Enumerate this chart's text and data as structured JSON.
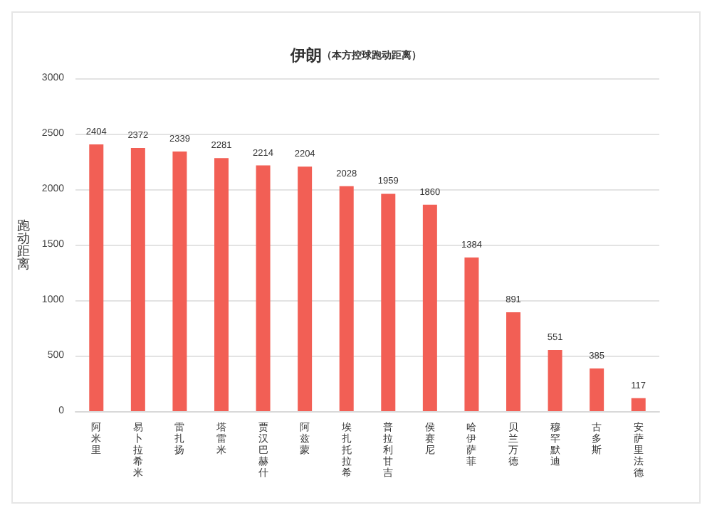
{
  "chart_data": {
    "type": "bar",
    "title": "伊朗",
    "subtitle": "（本方控球跑动距离）",
    "ylabel": "跑动距离",
    "categories": [
      "阿米里",
      "易卜拉希米",
      "雷扎扬",
      "塔雷米",
      "贾汉巴赫什",
      "阿兹蒙",
      "埃扎托拉希",
      "普拉利甘吉",
      "侯赛尼",
      "哈伊萨菲",
      "贝兰万德",
      "穆罕默迪",
      "古多斯",
      "安萨里法德"
    ],
    "values": [
      2404,
      2372,
      2339,
      2281,
      2214,
      2204,
      2028,
      1959,
      1860,
      1384,
      891,
      551,
      385,
      117
    ],
    "color": "#f25f55",
    "ylim": [
      0,
      3000
    ],
    "yticks": [
      0,
      500,
      1000,
      1500,
      2000,
      2500,
      3000
    ],
    "grid": "y",
    "data_labels": true
  }
}
